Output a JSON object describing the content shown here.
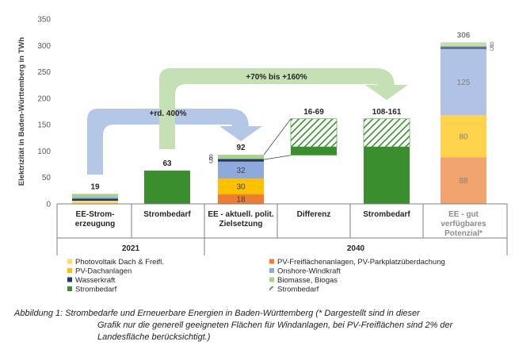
{
  "chart_data": {
    "type": "bar",
    "ylabel": "Elektrizität in Baden-Württemberg in TWh",
    "ylim": [
      0,
      350
    ],
    "yticks": [
      0,
      50,
      100,
      150,
      200,
      250,
      300,
      350
    ],
    "categories": [
      {
        "lines": [
          "EE-Strom-",
          "erzeugung"
        ],
        "bold": true
      },
      {
        "lines": [
          "Strombedarf"
        ],
        "bold": true
      },
      {
        "lines": [
          "EE - aktuell. polit.",
          "Zielsetzung"
        ],
        "bold": true
      },
      {
        "lines": [
          "Differenz"
        ],
        "bold": true
      },
      {
        "lines": [
          "Strombedarf"
        ],
        "bold": true
      },
      {
        "lines": [
          "EE - gut",
          "verfügbares",
          "Potenzial*"
        ],
        "bold": true,
        "muted": true
      }
    ],
    "groups": [
      {
        "label": "2021",
        "from": 0,
        "to": 1
      },
      {
        "label": "2040",
        "from": 2,
        "to": 5
      }
    ],
    "series": [
      {
        "name": "Photovoltaik Dach & Freifl.",
        "color": "#FFD966"
      },
      {
        "name": "PV-Freiflächenanlagen, PV-Parkplatzüberdachung",
        "color": "#ED7D31"
      },
      {
        "name": "PV-Dachanlagen",
        "color": "#FFC000"
      },
      {
        "name": "Onshore-Windkraft",
        "color": "#8EA9DB"
      },
      {
        "name": "Wasserkraft",
        "color": "#203864"
      },
      {
        "name": "Biomasse, Biogas",
        "color": "#A9D18E"
      },
      {
        "name": "Strombedarf",
        "color": "#3A8E2E"
      },
      {
        "name": "Strombedarf",
        "color": "#3A8E2E",
        "hatched": true
      }
    ],
    "stacks": [
      {
        "category": 0,
        "total_label": "19",
        "segments": [
          {
            "series": 0,
            "value": 6
          },
          {
            "series": 4,
            "value": 4
          },
          {
            "series": 3,
            "value": 3
          },
          {
            "series": 5,
            "value": 6
          }
        ]
      },
      {
        "category": 1,
        "total_label": "63",
        "segments": [
          {
            "series": 6,
            "value": 63
          }
        ]
      },
      {
        "category": 2,
        "total_label": "92",
        "segments": [
          {
            "series": 1,
            "value": 18,
            "label": "18"
          },
          {
            "series": 2,
            "value": 30,
            "label": "30"
          },
          {
            "series": 3,
            "value": 32,
            "label": "32"
          },
          {
            "series": 4,
            "value": 5,
            "label": "5",
            "label_side": "left"
          },
          {
            "series": 5,
            "value": 8,
            "label": "8",
            "label_side": "left"
          }
        ]
      },
      {
        "category": 3,
        "total_label": "16-69",
        "base": 92,
        "segments": [
          {
            "series": 6,
            "value": 16
          },
          {
            "series": 7,
            "value": 53
          }
        ]
      },
      {
        "category": 4,
        "total_label": "108-161",
        "segments": [
          {
            "series": 6,
            "value": 108
          },
          {
            "series": 7,
            "value": 53
          }
        ]
      },
      {
        "category": 5,
        "total_label": "306",
        "muted": true,
        "segments": [
          {
            "series": 1,
            "value": 88,
            "label": "88"
          },
          {
            "series": 2,
            "value": 80,
            "label": "80"
          },
          {
            "series": 3,
            "value": 125,
            "label": "125"
          },
          {
            "series": 4,
            "value": 5,
            "label": "5",
            "label_side": "right"
          },
          {
            "series": 5,
            "value": 8,
            "label": "8",
            "label_side": "right"
          }
        ]
      }
    ],
    "annotations": [
      {
        "text": "+rd. 400%",
        "color": "#B4C7E7",
        "from": 0,
        "to": 2
      },
      {
        "text": "+70% bis +160%",
        "color": "#C5E0B4",
        "from": 1,
        "to": 4
      }
    ],
    "legend": [
      {
        "text": "Photovoltaik Dach & Freifl.",
        "series": 0
      },
      {
        "text": "PV-Dachanlagen",
        "series": 2
      },
      {
        "text": "Wasserkraft",
        "series": 4
      },
      {
        "text": "Strombedarf",
        "series": 6
      },
      {
        "text": "PV-Freiflächenanlagen, PV-Parkplatzüberdachung",
        "series": 1
      },
      {
        "text": "Onshore-Windkraft",
        "series": 3
      },
      {
        "text": "Biomasse, Biogas",
        "series": 5
      },
      {
        "text": "Strombedarf",
        "series": 7
      }
    ]
  },
  "caption": {
    "first": "Abbildung 1: Strombedarfe und Erneuerbare Energien in Baden-Württemberg (* Dargestellt sind in dieser",
    "rest": "Grafik nur die generell geeigneten Flächen für Windanlagen, bei PV-Freiflächen sind 2% der Landesfläche berücksichtigt.)"
  }
}
